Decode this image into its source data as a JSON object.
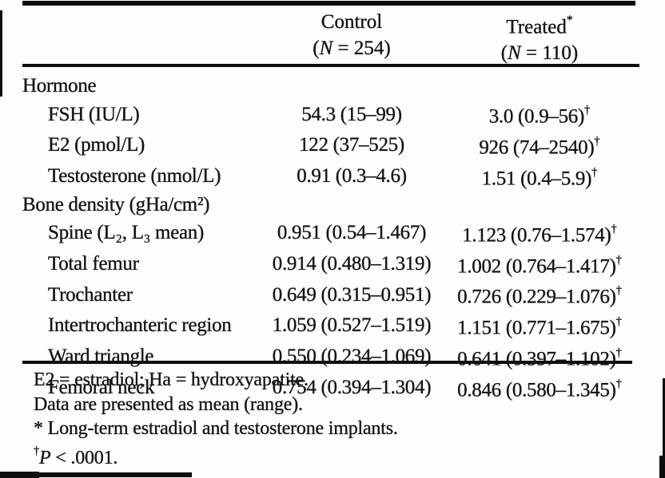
{
  "table": {
    "header": {
      "control": {
        "title": "Control",
        "n_open": "(",
        "n_italic": "N",
        "n_rest": " = 254)"
      },
      "treated": {
        "title": "Treated",
        "marker": "*",
        "n_open": "(",
        "n_italic": "N",
        "n_rest": " = 110)"
      }
    },
    "rows": [
      {
        "label": "Hormone",
        "control": "",
        "treated": "",
        "marker": ""
      },
      {
        "label": "FSH (IU/L)",
        "control": "54.3 (15–99)",
        "treated": "3.0 (0.9–56)",
        "marker": "†"
      },
      {
        "label": "E2 (pmol/L)",
        "control": "122 (37–525)",
        "treated": "926 (74–2540)",
        "marker": "†"
      },
      {
        "label": "Testosterone (nmol/L)",
        "control": "0.91 (0.3–4.6)",
        "treated": "1.51 (0.4–5.9)",
        "marker": "†"
      },
      {
        "label": "Bone density (gHa/cm²)",
        "control": "",
        "treated": "",
        "marker": ""
      },
      {
        "label": "Spine (L₂, L₃ mean)",
        "control": "0.951 (0.54–1.467)",
        "treated": "1.123 (0.76–1.574)",
        "marker": "†"
      },
      {
        "label": "Total femur",
        "control": "0.914 (0.480–1.319)",
        "treated": "1.002 (0.764–1.417)",
        "marker": "†"
      },
      {
        "label": "Trochanter",
        "control": "0.649 (0.315–0.951)",
        "treated": "0.726 (0.229–1.076)",
        "marker": "†"
      },
      {
        "label": "Intertrochanteric region",
        "control": "1.059 (0.527–1.519)",
        "treated": "1.151 (0.771–1.675)",
        "marker": "†"
      },
      {
        "label": "Ward triangle",
        "control": "0.550 (0.234–1.069)",
        "treated": "0.641 (0.397–1.102)",
        "marker": "†"
      },
      {
        "label": "Femoral neck",
        "control": "0.754 (0.394–1.304)",
        "treated": "0.846 (0.580–1.345)",
        "marker": "†"
      }
    ],
    "footnotes": {
      "abbreviations": "E2 = estradiol; Ha = hydroxyapatite.",
      "data_note": "Data are presented as mean (range).",
      "star_marker": "*",
      "star_text": " Long-term estradiol and testosterone implants.",
      "dagger_marker": "†",
      "dagger_p": "P",
      "dagger_text": " < .0001."
    }
  },
  "colors": {
    "ink": "#0d0d0d",
    "paper": "#fefefe"
  }
}
